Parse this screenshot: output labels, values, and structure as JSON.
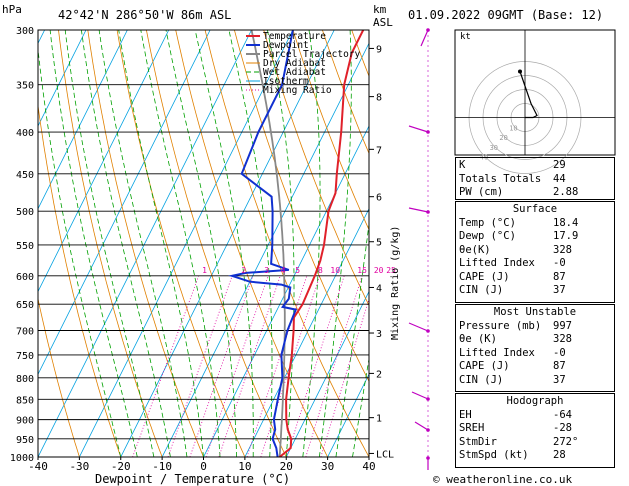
{
  "header": {
    "location": "42°42'N  286°50'W  86m  ASL",
    "datetime": "01.09.2022  09GMT  (Base: 12)",
    "hpa_unit": "hPa",
    "km_unit": "km",
    "asl_unit": "ASL",
    "hodo_unit": "kt"
  },
  "footer": {
    "copyright": "© weatheronline.co.uk"
  },
  "colors": {
    "temperature": "#e0202a",
    "dewpoint": "#1030d0",
    "parcel": "#888888",
    "dry_adiabat": "#e08000",
    "wet_adiabat": "#00a000",
    "isotherm": "#00a0e0",
    "mixing_ratio": "#e000a0",
    "wind_barb": "#c000c0"
  },
  "chart_data": {
    "type": "line",
    "title": "",
    "xlabel": "Dewpoint / Temperature (°C)",
    "ylabel": "Mixing Ratio (g/kg)",
    "xlim": [
      -40,
      40
    ],
    "ylim": [
      1000,
      300
    ],
    "x_ticks": [
      "-40",
      "-30",
      "-20",
      "-10",
      "0",
      "10",
      "20",
      "30",
      "40"
    ],
    "p_levels": [
      "300",
      "350",
      "400",
      "450",
      "500",
      "550",
      "600",
      "650",
      "700",
      "750",
      "800",
      "850",
      "900",
      "950",
      "1000"
    ],
    "km_ticks": [
      {
        "label": "9",
        "p": 316
      },
      {
        "label": "8",
        "p": 362
      },
      {
        "label": "7",
        "p": 420
      },
      {
        "label": "6",
        "p": 480
      },
      {
        "label": "5",
        "p": 545
      },
      {
        "label": "4",
        "p": 620
      },
      {
        "label": "3",
        "p": 705
      },
      {
        "label": "2",
        "p": 790
      },
      {
        "label": "1",
        "p": 895
      },
      {
        "label": "LCL",
        "p": 990
      }
    ],
    "mixing_ratio_labels": [
      {
        "label": "1",
        "x": -21.5
      },
      {
        "label": "2",
        "x": -12
      },
      {
        "label": "3",
        "x": -6.5
      },
      {
        "label": "4",
        "x": -2.5
      },
      {
        "label": "5",
        "x": 1
      },
      {
        "label": "8",
        "x": 6.5
      },
      {
        "label": "10",
        "x": 9.5
      },
      {
        "label": "15",
        "x": 16
      },
      {
        "label": "20",
        "x": 20
      },
      {
        "label": "25",
        "x": 23
      }
    ],
    "legend": [
      "Temperature",
      "Dewpoint",
      "Parcel Trajectory",
      "Dry Adiabat",
      "Wet Adiabat",
      "Isotherm",
      "Mixing Ratio"
    ],
    "series": [
      {
        "name": "Temperature",
        "points": [
          [
            1000,
            18.4
          ],
          [
            975,
            20
          ],
          [
            950,
            19
          ],
          [
            925,
            17
          ],
          [
            900,
            15.5
          ],
          [
            850,
            13
          ],
          [
            800,
            11
          ],
          [
            750,
            9
          ],
          [
            700,
            6.5
          ],
          [
            675,
            5
          ],
          [
            650,
            5.5
          ],
          [
            600,
            5
          ],
          [
            575,
            4.5
          ],
          [
            550,
            3.5
          ],
          [
            500,
            0.5
          ],
          [
            475,
            0
          ],
          [
            450,
            -2
          ],
          [
            400,
            -6
          ],
          [
            350,
            -11
          ],
          [
            320,
            -13
          ],
          [
            300,
            -13
          ]
        ]
      },
      {
        "name": "Dewpoint",
        "points": [
          [
            1000,
            17.9
          ],
          [
            975,
            16.5
          ],
          [
            950,
            14.5
          ],
          [
            925,
            14
          ],
          [
            900,
            12.5
          ],
          [
            850,
            11
          ],
          [
            800,
            9.5
          ],
          [
            750,
            6.5
          ],
          [
            700,
            5
          ],
          [
            660,
            4.5
          ],
          [
            655,
            1
          ],
          [
            640,
            1.5
          ],
          [
            620,
            0.5
          ],
          [
            615,
            -2
          ],
          [
            610,
            -10
          ],
          [
            600,
            -15
          ],
          [
            595,
            -12
          ],
          [
            590,
            -2
          ],
          [
            580,
            -7
          ],
          [
            550,
            -9
          ],
          [
            500,
            -13
          ],
          [
            480,
            -15
          ],
          [
            450,
            -25
          ],
          [
            400,
            -26
          ],
          [
            350,
            -26
          ],
          [
            300,
            -30
          ]
        ]
      }
    ]
  },
  "hodograph": {
    "rings": [
      "10",
      "20",
      "30",
      "40"
    ]
  },
  "indices": {
    "rows": [
      {
        "label": "K",
        "value": "29"
      },
      {
        "label": "Totals Totals",
        "value": "44"
      },
      {
        "label": "PW (cm)",
        "value": "2.88"
      }
    ]
  },
  "surface": {
    "title": "Surface",
    "rows": [
      {
        "label": "Temp (°C)",
        "value": "18.4"
      },
      {
        "label": "Dewp (°C)",
        "value": "17.9"
      },
      {
        "label": "θe(K)",
        "value": "328"
      },
      {
        "label": "Lifted Index",
        "value": "-0"
      },
      {
        "label": "CAPE (J)",
        "value": "87"
      },
      {
        "label": "CIN (J)",
        "value": "37"
      }
    ]
  },
  "most_unstable": {
    "title": "Most Unstable",
    "rows": [
      {
        "label": "Pressure (mb)",
        "value": "997"
      },
      {
        "label": "θe (K)",
        "value": "328"
      },
      {
        "label": "Lifted Index",
        "value": "-0"
      },
      {
        "label": "CAPE (J)",
        "value": "87"
      },
      {
        "label": "CIN (J)",
        "value": "37"
      }
    ]
  },
  "hodograph_table": {
    "title": "Hodograph",
    "rows": [
      {
        "label": "EH",
        "value": "-64"
      },
      {
        "label": "SREH",
        "value": "-28"
      },
      {
        "label": "StmDir",
        "value": "272°"
      },
      {
        "label": "StmSpd (kt)",
        "value": "28"
      }
    ]
  }
}
